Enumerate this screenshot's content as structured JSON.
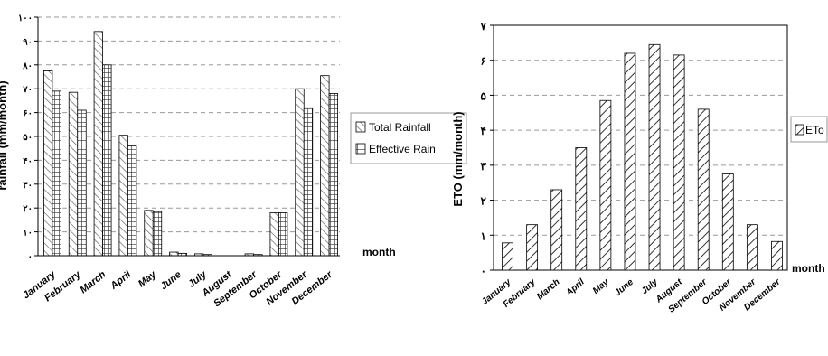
{
  "chart_data": [
    {
      "type": "bar",
      "xlabel": "month",
      "ylabel": "rainfall (mm/month)",
      "ylim": [
        0,
        100
      ],
      "yticks": [
        "۰",
        "۱۰",
        "۲۰",
        "۳۰",
        "۴۰",
        "۵۰",
        "۶۰",
        "۷۰",
        "۸۰",
        "۹۰",
        "۱۰۰"
      ],
      "grid": true,
      "legend_position": "right",
      "categories": [
        "January",
        "February",
        "March",
        "April",
        "May",
        "June",
        "July",
        "August",
        "September",
        "October",
        "November",
        "December"
      ],
      "series": [
        {
          "name": "Total Rainfall",
          "values": [
            77.5,
            68.5,
            94,
            50.5,
            19,
            1.5,
            0.8,
            0,
            0.8,
            18,
            70,
            75.5
          ]
        },
        {
          "name": "Effective Rain",
          "values": [
            69,
            61,
            80,
            46,
            18.5,
            1,
            0.5,
            0,
            0.5,
            18,
            62,
            68
          ]
        }
      ]
    },
    {
      "type": "bar",
      "xlabel": "month",
      "ylabel": "ETO (mm/month)",
      "ylim": [
        0,
        7
      ],
      "yticks": [
        "۰",
        "۱",
        "۲",
        "۳",
        "۴",
        "۵",
        "۶",
        "۷"
      ],
      "grid": true,
      "legend_position": "right",
      "categories": [
        "January",
        "February",
        "March",
        "April",
        "May",
        "June",
        "July",
        "August",
        "September",
        "October",
        "November",
        "December"
      ],
      "series": [
        {
          "name": "ETo",
          "values": [
            0.78,
            1.3,
            2.3,
            3.5,
            4.85,
            6.2,
            6.45,
            6.15,
            4.6,
            2.75,
            1.3,
            0.82
          ]
        }
      ]
    }
  ],
  "colors": {
    "bar_fill": "#ffffff",
    "hatch": "#555555",
    "grid": "#999999",
    "axis": "#000000"
  }
}
